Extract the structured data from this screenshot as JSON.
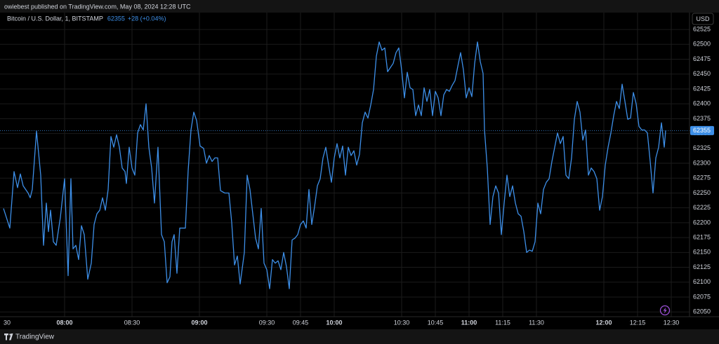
{
  "header": {
    "published": "owiebest published on TradingView.com, May 08, 2024 12:28 UTC"
  },
  "footer": {
    "brand": "TradingView"
  },
  "chart_data": {
    "type": "line",
    "title": "Bitcoin / U.S. Dollar, 1, BITSTAMP",
    "last_price": 62355,
    "change": "+28 (+0.04%)",
    "currency": "USD",
    "color": "#3d8fe8",
    "grid": true,
    "xlim": [
      -28.75,
      278.125
    ],
    "ylim": [
      62042,
      62551
    ],
    "yticks": [
      62050,
      62075,
      62100,
      62125,
      62150,
      62175,
      62200,
      62225,
      62250,
      62275,
      62300,
      62325,
      62350,
      62375,
      62400,
      62425,
      62450,
      62475,
      62500,
      62525
    ],
    "xticks": [
      {
        "value": -30,
        "label": "30"
      },
      {
        "value": 0,
        "label": "08:00"
      },
      {
        "value": 30,
        "label": "08:30"
      },
      {
        "value": 60,
        "label": "09:00"
      },
      {
        "value": 90,
        "label": "09:30"
      },
      {
        "value": 105,
        "label": "09:45"
      },
      {
        "value": 120,
        "label": "10:00"
      },
      {
        "value": 150,
        "label": "10:30"
      },
      {
        "value": 165,
        "label": "10:45"
      },
      {
        "value": 180,
        "label": "11:00"
      },
      {
        "value": 195,
        "label": "11:15"
      },
      {
        "value": 210,
        "label": "11:30"
      },
      {
        "value": 240,
        "label": "12:00"
      },
      {
        "value": 255,
        "label": "12:15"
      },
      {
        "value": 270,
        "label": "12:30"
      }
    ],
    "x": [
      -27.19,
      -24.38,
      -22.5,
      -20.94,
      -19.69,
      -18.44,
      -16.25,
      -15.31,
      -14.38,
      -12.5,
      -10.63,
      -9.38,
      -8.13,
      -7.19,
      -6.25,
      -5,
      -3.75,
      -1.88,
      0,
      1.56,
      2.81,
      3.75,
      5,
      6.25,
      7.5,
      8.75,
      10.31,
      11.88,
      13.13,
      14.38,
      15.63,
      16.88,
      18.13,
      19.38,
      20.63,
      21.88,
      23.13,
      24.38,
      25.63,
      26.88,
      27.5,
      28.75,
      30,
      31.25,
      32.5,
      33.75,
      35,
      36.25,
      37.5,
      38.75,
      40,
      41.56,
      43.13,
      44.38,
      45.63,
      46.88,
      47.81,
      48.75,
      50,
      51.25,
      52.5,
      53.75,
      55,
      56.25,
      57.5,
      58.75,
      60.31,
      61.88,
      63.13,
      64.38,
      65.63,
      66.88,
      68.13,
      69.38,
      71.25,
      73.13,
      74.38,
      75.63,
      76.88,
      78.13,
      80,
      81.25,
      82.5,
      83.75,
      85,
      86.25,
      87.5,
      88.75,
      90,
      91.25,
      92.5,
      93.75,
      95,
      96.25,
      97.5,
      98.75,
      100,
      101.25,
      102.5,
      103.75,
      105,
      106.25,
      107.5,
      108.75,
      110,
      111.25,
      112.5,
      113.75,
      115,
      116.25,
      117.5,
      118.75,
      120,
      121.25,
      122.5,
      123.75,
      125,
      126.25,
      127.5,
      128.75,
      130,
      131.25,
      132.5,
      133.75,
      135,
      136.25,
      137.5,
      138.75,
      140,
      141.25,
      142.5,
      143.75,
      145,
      146.25,
      147.5,
      148.75,
      150,
      151.25,
      152.5,
      153.75,
      155,
      156.25,
      157.5,
      158.75,
      160,
      161.25,
      162.5,
      163.75,
      165,
      166.25,
      167.5,
      168.75,
      170,
      171.25,
      172.5,
      173.75,
      175,
      176.25,
      177.5,
      178.75,
      180,
      181.25,
      182.5,
      183.75,
      185,
      186.25,
      186.88,
      188.13,
      189.38,
      190.63,
      191.88,
      193.13,
      194.38,
      195.63,
      196.88,
      198.13,
      199.38,
      200.63,
      201.88,
      203.13,
      204.38,
      205.63,
      206.88,
      208.13,
      209.38,
      210.63,
      211.88,
      213.13,
      214.38,
      215.63,
      216.88,
      218.13,
      219.38,
      220.63,
      221.88,
      223.13,
      224.38,
      225.63,
      226.88,
      228.13,
      229.38,
      230.63,
      231.88,
      233.13,
      234.38,
      235.63,
      236.88,
      238.13,
      239.38,
      240.63,
      241.88,
      243.13,
      244.38,
      245.63,
      246.88,
      248.13,
      249.38,
      250.63,
      251.88,
      253.13,
      254.38,
      255.63,
      256.88,
      258.13,
      259.38,
      260.63,
      261.88,
      263.13,
      264.38,
      265.63,
      266.88,
      267.5
    ],
    "values": [
      62224,
      62191,
      62286,
      62259,
      62282,
      62262,
      62250,
      62242,
      62256,
      62354,
      62280,
      62162,
      62233,
      62185,
      62221,
      62168,
      62162,
      62209,
      62274,
      62111,
      62274,
      62156,
      62162,
      62138,
      62195,
      62180,
      62105,
      62132,
      62197,
      62215,
      62221,
      62242,
      62221,
      62256,
      62345,
      62327,
      62348,
      62327,
      62292,
      62286,
      62266,
      62327,
      62292,
      62280,
      62351,
      62365,
      62356,
      62400,
      62327,
      62292,
      62233,
      62327,
      62180,
      62168,
      62099,
      62109,
      62168,
      62180,
      62115,
      62191,
      62191,
      62191,
      62288,
      62356,
      62386,
      62372,
      62329,
      62325,
      62300,
      62313,
      62303,
      62309,
      62309,
      62254,
      62250,
      62250,
      62200,
      62129,
      62144,
      62097,
      62150,
      62280,
      62256,
      62215,
      62174,
      62156,
      62224,
      62132,
      62121,
      62089,
      62138,
      62132,
      62136,
      62121,
      62150,
      62126,
      62089,
      62171,
      62174,
      62180,
      62197,
      62203,
      62191,
      62256,
      62197,
      62227,
      62262,
      62274,
      62309,
      62327,
      62297,
      62268,
      62309,
      62333,
      62309,
      62329,
      62280,
      62327,
      62313,
      62321,
      62297,
      62315,
      62368,
      62386,
      62376,
      62398,
      62424,
      62480,
      62504,
      62490,
      62494,
      62454,
      62461,
      62468,
      62486,
      62494,
      62457,
      62410,
      62453,
      62427,
      62424,
      62380,
      62398,
      62380,
      62427,
      62404,
      62424,
      62380,
      62421,
      62410,
      62380,
      62415,
      62424,
      62421,
      62431,
      62439,
      62463,
      62486,
      62457,
      62410,
      62427,
      62412,
      62468,
      62504,
      62471,
      62451,
      62356,
      62292,
      62197,
      62244,
      62262,
      62250,
      62180,
      62233,
      62280,
      62244,
      62262,
      62233,
      62215,
      62211,
      62185,
      62150,
      62154,
      62152,
      62168,
      62233,
      62215,
      62256,
      62268,
      62274,
      62303,
      62327,
      62351,
      62333,
      62345,
      62280,
      62274,
      62309,
      62374,
      62404,
      62386,
      62339,
      62356,
      62280,
      62292,
      62286,
      62274,
      62221,
      62244,
      62297,
      62327,
      62351,
      62380,
      62404,
      62392,
      62433,
      62404,
      62374,
      62376,
      62419,
      62400,
      62362,
      62356,
      62356,
      62351,
      62303,
      62250,
      62309,
      62327,
      62368,
      62327,
      62355
    ]
  }
}
